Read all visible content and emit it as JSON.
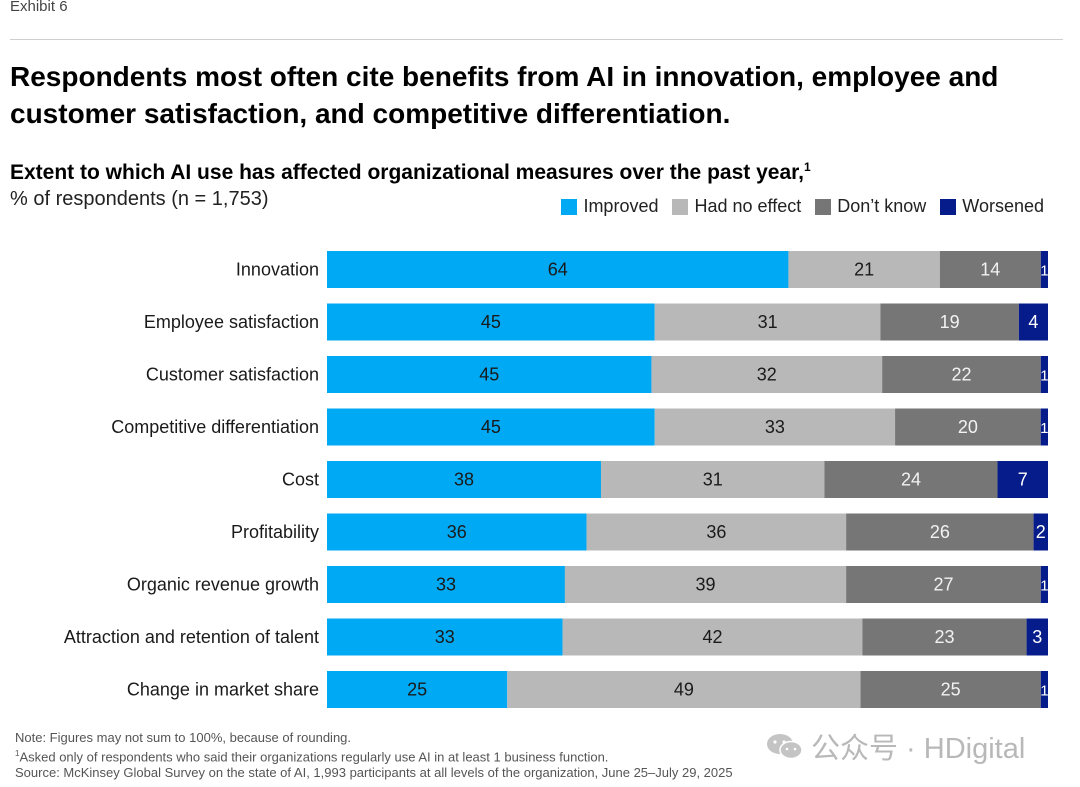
{
  "exhibit_label": "Exhibit 6",
  "title": "Respondents most often cite benefits from AI in innovation, employee and customer satisfaction, and competitive differentiation.",
  "subtitle": "Extent to which AI use has affected organizational measures over the past year,",
  "subtitle_footnote": "1",
  "units_label": "% of respondents (n = 1,753)",
  "chart_data": {
    "type": "bar",
    "orientation": "horizontal",
    "stacked": true,
    "categories": [
      "Innovation",
      "Employee satisfaction",
      "Customer satisfaction",
      "Competitive differentiation",
      "Cost",
      "Profitability",
      "Organic revenue growth",
      "Attraction and retention of talent",
      "Change in market share"
    ],
    "series": [
      {
        "name": "Improved",
        "color": "#00a9f4",
        "label_color": "#1a1a1a",
        "values": [
          64,
          45,
          45,
          45,
          38,
          36,
          33,
          33,
          25
        ]
      },
      {
        "name": "Had no effect",
        "color": "#b8b8b8",
        "label_color": "#1a1a1a",
        "values": [
          21,
          31,
          32,
          33,
          31,
          36,
          39,
          42,
          49
        ]
      },
      {
        "name": "Don’t know",
        "color": "#767676",
        "label_color": "#f2f2f2",
        "values": [
          14,
          19,
          22,
          20,
          24,
          26,
          27,
          23,
          25
        ]
      },
      {
        "name": "Worsened",
        "color": "#051c8a",
        "label_color": "#ffffff",
        "values": [
          1,
          4,
          1,
          1,
          7,
          2,
          1,
          3,
          1
        ]
      }
    ],
    "xlim": [
      0,
      100
    ],
    "legend_position": "top-right"
  },
  "footer": {
    "note": "Note: Figures may not sum to 100%, because of rounding.",
    "footnote_marker": "1",
    "footnote": "Asked only of respondents who said their organizations regularly use AI in at least 1 business function.",
    "source": "Source: McKinsey Global Survey on the state of AI, 1,993 participants at all levels of the organization, June 25–July 29, 2025"
  },
  "watermark": "公众号 · HDigital",
  "colors": {
    "improved": "#00a9f4",
    "no_effect": "#b8b8b8",
    "dont_know": "#767676",
    "worsened": "#051c8a"
  }
}
